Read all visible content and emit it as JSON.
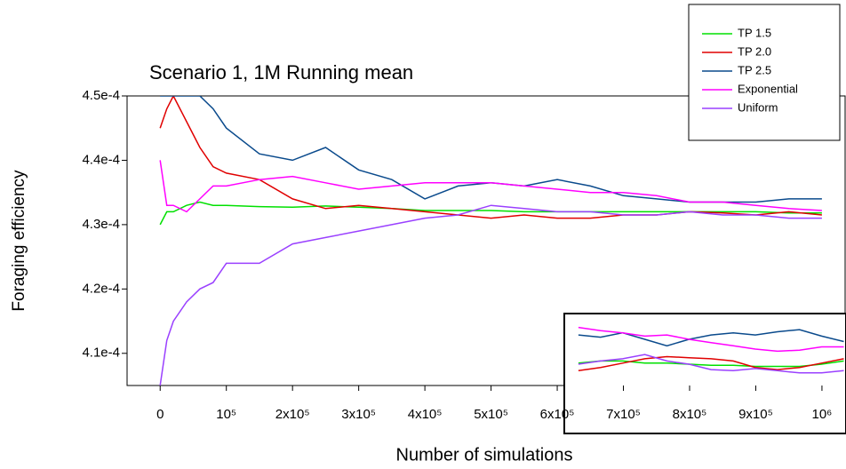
{
  "chart_data": [
    {
      "type": "line",
      "title": "Scenario 1, 1M Running mean",
      "x_label": "Number of simulations",
      "y_label": "Foraging efficiency",
      "x": [
        0,
        10000,
        20000,
        40000,
        60000,
        80000,
        100000,
        150000,
        200000,
        250000,
        300000,
        350000,
        400000,
        450000,
        500000,
        550000,
        600000,
        650000,
        700000,
        750000,
        800000,
        850000,
        900000,
        950000,
        1000000
      ],
      "series": [
        {
          "name": "TP 1.5",
          "color": "#00e000",
          "values": [
            0.00043,
            0.000432,
            0.000432,
            0.000433,
            0.0004335,
            0.000433,
            0.000433,
            0.0004328,
            0.0004327,
            0.0004329,
            0.0004327,
            0.0004325,
            0.0004322,
            0.0004322,
            0.0004322,
            0.000432,
            0.000432,
            0.000432,
            0.000432,
            0.000432,
            0.000432,
            0.000432,
            0.000432,
            0.0004318,
            0.0004318
          ]
        },
        {
          "name": "TP 2.0",
          "color": "#e00000",
          "values": [
            0.000445,
            0.000448,
            0.00045,
            0.000446,
            0.000442,
            0.000439,
            0.000438,
            0.000437,
            0.000434,
            0.0004325,
            0.000433,
            0.0004325,
            0.000432,
            0.0004315,
            0.000431,
            0.0004315,
            0.000431,
            0.000431,
            0.0004315,
            0.0004315,
            0.000432,
            0.0004318,
            0.0004315,
            0.000432,
            0.0004315
          ]
        },
        {
          "name": "TP 2.5",
          "color": "#0a4a8c",
          "values": [
            0.00045,
            0.00045,
            0.00045,
            0.00045,
            0.00045,
            0.000448,
            0.000445,
            0.000441,
            0.00044,
            0.000442,
            0.0004385,
            0.000437,
            0.000434,
            0.000436,
            0.0004365,
            0.000436,
            0.000437,
            0.000436,
            0.0004345,
            0.000434,
            0.0004335,
            0.0004335,
            0.0004335,
            0.000434,
            0.000434
          ]
        },
        {
          "name": "Exponential",
          "color": "#ff00ff",
          "values": [
            0.00044,
            0.000433,
            0.000433,
            0.000432,
            0.000434,
            0.000436,
            0.000436,
            0.000437,
            0.0004375,
            0.0004365,
            0.0004355,
            0.000436,
            0.0004365,
            0.0004365,
            0.0004365,
            0.000436,
            0.0004355,
            0.000435,
            0.000435,
            0.0004345,
            0.0004335,
            0.0004335,
            0.000433,
            0.0004325,
            0.0004322
          ]
        },
        {
          "name": "Uniform",
          "color": "#9a40ff",
          "values": [
            0.000405,
            0.000412,
            0.000415,
            0.000418,
            0.00042,
            0.000421,
            0.000424,
            0.000424,
            0.000427,
            0.000428,
            0.000429,
            0.00043,
            0.000431,
            0.0004315,
            0.000433,
            0.0004325,
            0.000432,
            0.000432,
            0.0004315,
            0.0004315,
            0.000432,
            0.0004315,
            0.0004315,
            0.000431,
            0.000431
          ]
        }
      ],
      "xlim": [
        -50000,
        1035000
      ],
      "ylim": [
        0.000405,
        0.00045
      ],
      "xticks": [
        0,
        {
          "value": 100000,
          "label": "10⁵"
        },
        {
          "value": 200000,
          "label": "2x10⁵"
        },
        {
          "value": 300000,
          "label": "3x10⁵"
        },
        {
          "value": 400000,
          "label": "4x10⁵"
        },
        {
          "value": 500000,
          "label": "5x10⁵"
        },
        {
          "value": 600000,
          "label": "6x10⁵"
        },
        {
          "value": 700000,
          "label": "7x10⁵"
        },
        {
          "value": 800000,
          "label": "8x10⁵"
        },
        {
          "value": 900000,
          "label": "9x10⁵"
        },
        {
          "value": 1000000,
          "label": "10⁶"
        }
      ],
      "yticks": [
        {
          "value": 0.00041,
          "label": "4.1e-4"
        },
        {
          "value": 0.00042,
          "label": "4.2e-4"
        },
        {
          "value": 0.00043,
          "label": "4.3e-4"
        },
        {
          "value": 0.00044,
          "label": "4.4e-4"
        },
        {
          "value": 0.00045,
          "label": "4.5e-4"
        }
      ],
      "legend": "top-right"
    },
    {
      "type": "line",
      "x": [
        0,
        1,
        2,
        3,
        4,
        5,
        6,
        7,
        8,
        9,
        10,
        11,
        12
      ],
      "series": [
        {
          "color": "#00e000",
          "values": [
            65,
            67,
            67,
            65,
            65,
            64,
            63,
            63,
            62,
            62,
            62,
            64,
            67
          ]
        },
        {
          "color": "#e00000",
          "values": [
            58,
            61,
            65,
            69,
            71,
            70,
            69,
            67,
            61,
            59,
            61,
            65,
            69
          ]
        },
        {
          "color": "#0a4a8c",
          "values": [
            91,
            89,
            93,
            87,
            81,
            87,
            91,
            93,
            91,
            94,
            96,
            90,
            85
          ]
        },
        {
          "color": "#ff00ff",
          "values": [
            98,
            95,
            93,
            90,
            91,
            87,
            84,
            81,
            78,
            76,
            77,
            80,
            80
          ]
        },
        {
          "color": "#9a40ff",
          "values": [
            64,
            67,
            69,
            73,
            67,
            64,
            59,
            58,
            60,
            58,
            56,
            56,
            58
          ]
        }
      ],
      "xlim": [
        -0.6,
        12.1
      ],
      "ylim": [
        0,
        110
      ]
    }
  ]
}
